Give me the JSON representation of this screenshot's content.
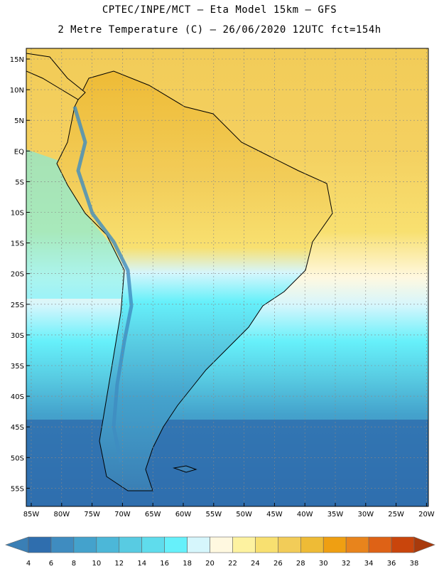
{
  "header": {
    "line1": "CPTEC/INPE/MCT –  Eta Model 15km – GFS",
    "line2": "2 Metre Temperature (C) – 26/06/2020 12UTC fct=154h"
  },
  "map": {
    "lat_labels": [
      "15N",
      "10N",
      "5N",
      "EQ",
      "5S",
      "10S",
      "15S",
      "20S",
      "25S",
      "30S",
      "35S",
      "40S",
      "45S",
      "50S",
      "55S"
    ],
    "lon_labels": [
      "85W",
      "80W",
      "75W",
      "70W",
      "65W",
      "60W",
      "55W",
      "50W",
      "45W",
      "40W",
      "35W",
      "30W",
      "25W",
      "20W"
    ],
    "grid": true
  },
  "colorbar": {
    "labels": [
      "4",
      "6",
      "8",
      "10",
      "12",
      "14",
      "16",
      "18",
      "20",
      "22",
      "24",
      "26",
      "28",
      "30",
      "32",
      "34",
      "36",
      "38"
    ],
    "colors": [
      "#3a7fb5",
      "#2f6eae",
      "#3f8cc0",
      "#44a2cc",
      "#4cb7d8",
      "#58cbe2",
      "#5fdcec",
      "#66f0fa",
      "#d6f6fc",
      "#fff8e0",
      "#fdf2a0",
      "#f8e070",
      "#f2cc58",
      "#eebb36",
      "#ef9f12",
      "#e8841c",
      "#de6216",
      "#c9450c",
      "#a83a0c"
    ]
  }
}
